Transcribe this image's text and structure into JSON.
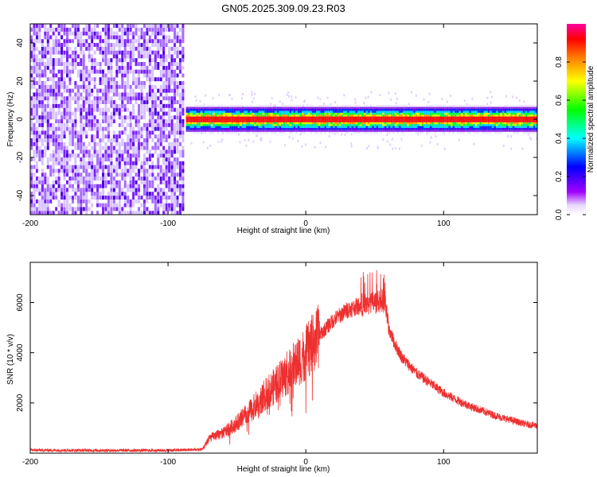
{
  "title": "GN05.2025.309.09.23.R03",
  "chart_data": [
    {
      "type": "heatmap",
      "xlabel": "Height of straight line (km)",
      "ylabel": "Frequency (Hz)",
      "xlim": [
        -200,
        168
      ],
      "ylim": [
        -50,
        50
      ],
      "xticks": [
        -200,
        -100,
        0,
        100
      ],
      "yticks": [
        -40,
        -20,
        0,
        20,
        40
      ],
      "noise_region_km": [
        -200,
        -88
      ],
      "signal_onset_km": -87,
      "signal_frequency_hz": 0,
      "signal_band_hz": [
        -3,
        3
      ],
      "colorbar": {
        "label": "Normalized spectral amplitude",
        "range": [
          0,
          1
        ],
        "ticks": [
          "0.0",
          "0.2",
          "0.4",
          "0.6",
          "0.8"
        ],
        "colors": [
          "#ffffff",
          "#a000ff",
          "#0000ff",
          "#00ffff",
          "#00ff00",
          "#ffff00",
          "#ff8000",
          "#ff0000",
          "#ff00a0"
        ]
      }
    },
    {
      "type": "line",
      "xlabel": "Height of straight line (km)",
      "ylabel": "SNR (10 * v/v)",
      "xlim": [
        -200,
        168
      ],
      "ylim": [
        0,
        7600
      ],
      "xticks": [
        -200,
        -100,
        0,
        100
      ],
      "yticks": [
        2000,
        4000,
        6000
      ],
      "series_color": "#ee3030",
      "envelope": {
        "x": [
          -200,
          -150,
          -100,
          -85,
          -75,
          -70,
          -60,
          -50,
          -40,
          -30,
          -20,
          -10,
          0,
          10,
          20,
          30,
          40,
          50,
          55,
          58,
          60,
          65,
          70,
          80,
          90,
          100,
          110,
          120,
          130,
          140,
          150,
          160,
          168
        ],
        "y": [
          120,
          110,
          110,
          130,
          150,
          600,
          800,
          1200,
          1700,
          2300,
          2800,
          3400,
          4000,
          4700,
          5300,
          5700,
          5900,
          6000,
          6100,
          5800,
          5000,
          4300,
          3800,
          3200,
          2800,
          2400,
          2100,
          1850,
          1650,
          1450,
          1300,
          1150,
          1100
        ]
      }
    }
  ]
}
